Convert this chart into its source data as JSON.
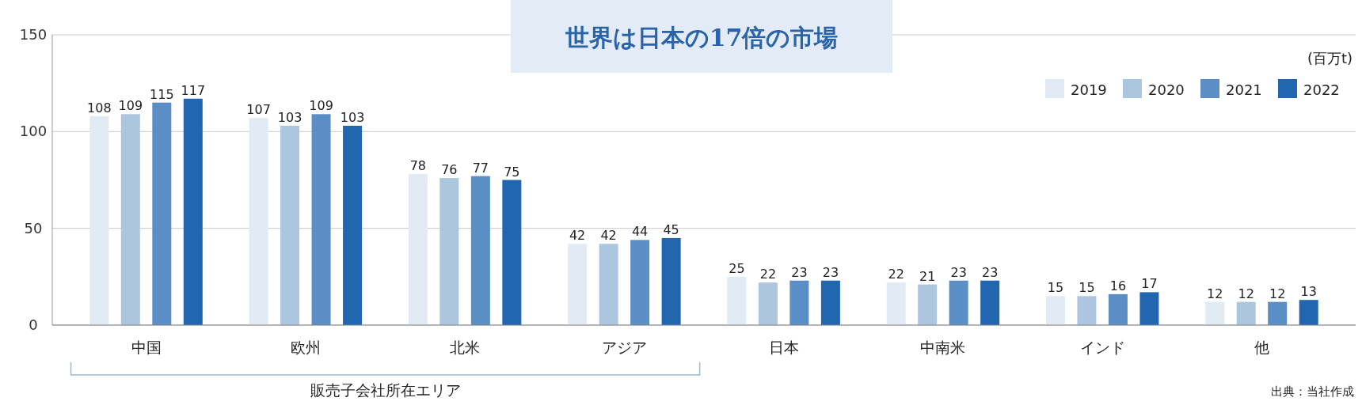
{
  "chart_data": {
    "type": "bar",
    "title": "世界は日本の17倍の市場",
    "ylabel": "(百万t)",
    "categories": [
      "中国",
      "欧州",
      "北米",
      "アジア",
      "日本",
      "中南米",
      "インド",
      "他"
    ],
    "series": [
      {
        "name": "2019",
        "color": "#e2eaf4",
        "values": [
          108,
          107,
          78,
          42,
          25,
          22,
          15,
          12
        ]
      },
      {
        "name": "2020",
        "color": "#adc6e0",
        "values": [
          109,
          103,
          76,
          42,
          22,
          21,
          15,
          12
        ]
      },
      {
        "name": "2021",
        "color": "#5b8ec4",
        "values": [
          115,
          109,
          77,
          44,
          23,
          23,
          16,
          12
        ]
      },
      {
        "name": "2022",
        "color": "#2166ae",
        "values": [
          117,
          103,
          75,
          45,
          23,
          23,
          17,
          13
        ]
      }
    ],
    "ylim": [
      0,
      150
    ],
    "yticks": [
      0,
      50,
      100,
      150
    ],
    "grid": "y",
    "legend": "top right",
    "data_labels": true,
    "annotations": [
      "販売子会社所在エリア",
      "出典：当社作成"
    ]
  }
}
